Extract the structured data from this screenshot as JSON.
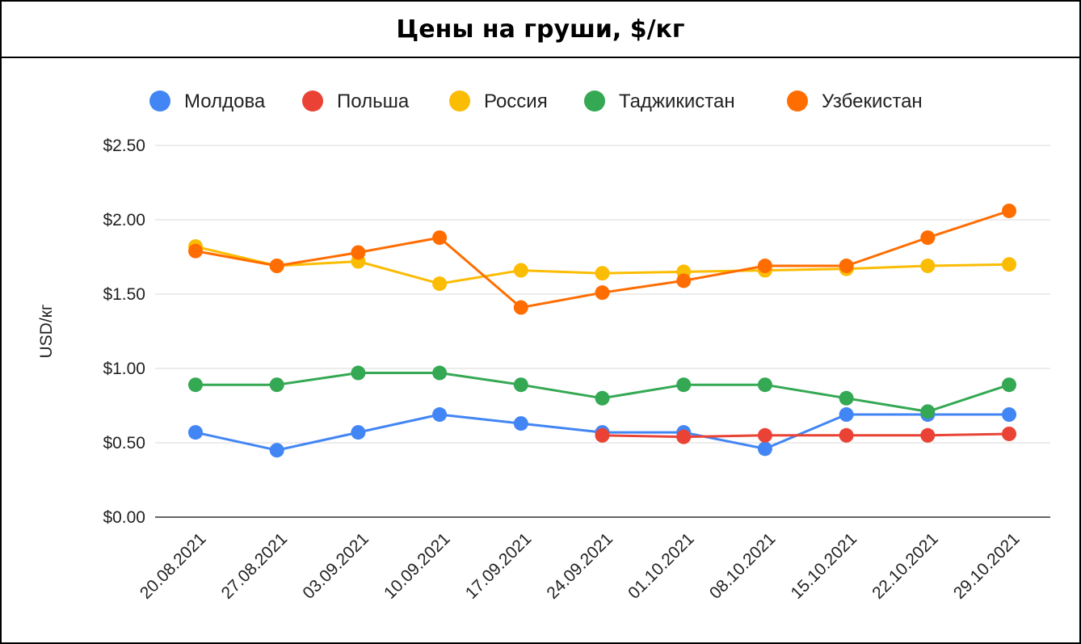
{
  "chart_data": {
    "type": "line",
    "title": "Цены на груши, $/кг",
    "ylabel": "USD/кг",
    "xlabel": "",
    "ylim": [
      0,
      2.5
    ],
    "yticks": [
      "$0.00",
      "$0.50",
      "$1.00",
      "$1.50",
      "$2.00",
      "$2.50"
    ],
    "ytick_values": [
      0,
      0.5,
      1.0,
      1.5,
      2.0,
      2.5
    ],
    "grid": true,
    "legend_position": "top",
    "categories": [
      "20.08.2021",
      "27.08.2021",
      "03.09.2021",
      "10.09.2021",
      "17.09.2021",
      "24.09.2021",
      "01.10.2021",
      "08.10.2021",
      "15.10.2021",
      "22.10.2021",
      "29.10.2021"
    ],
    "series": [
      {
        "name": "Молдова",
        "color": "#4285F4",
        "values": [
          0.57,
          0.45,
          0.57,
          0.69,
          0.63,
          0.57,
          0.57,
          0.46,
          0.69,
          0.69,
          0.69
        ]
      },
      {
        "name": "Польша",
        "color": "#EA4335",
        "values": [
          null,
          null,
          null,
          null,
          null,
          0.55,
          0.54,
          0.55,
          0.55,
          0.55,
          0.56
        ]
      },
      {
        "name": "Россия",
        "color": "#FBBC04",
        "values": [
          1.82,
          1.69,
          1.72,
          1.57,
          1.66,
          1.64,
          1.65,
          1.66,
          1.67,
          1.69,
          1.7
        ]
      },
      {
        "name": "Таджикистан",
        "color": "#34A853",
        "values": [
          0.89,
          0.89,
          0.97,
          0.97,
          0.89,
          0.8,
          0.89,
          0.89,
          0.8,
          0.71,
          0.89
        ]
      },
      {
        "name": "Узбекистан",
        "color": "#FF6D01",
        "values": [
          1.79,
          1.69,
          1.78,
          1.88,
          1.41,
          1.51,
          1.59,
          1.69,
          1.69,
          1.88,
          2.06
        ]
      }
    ]
  }
}
